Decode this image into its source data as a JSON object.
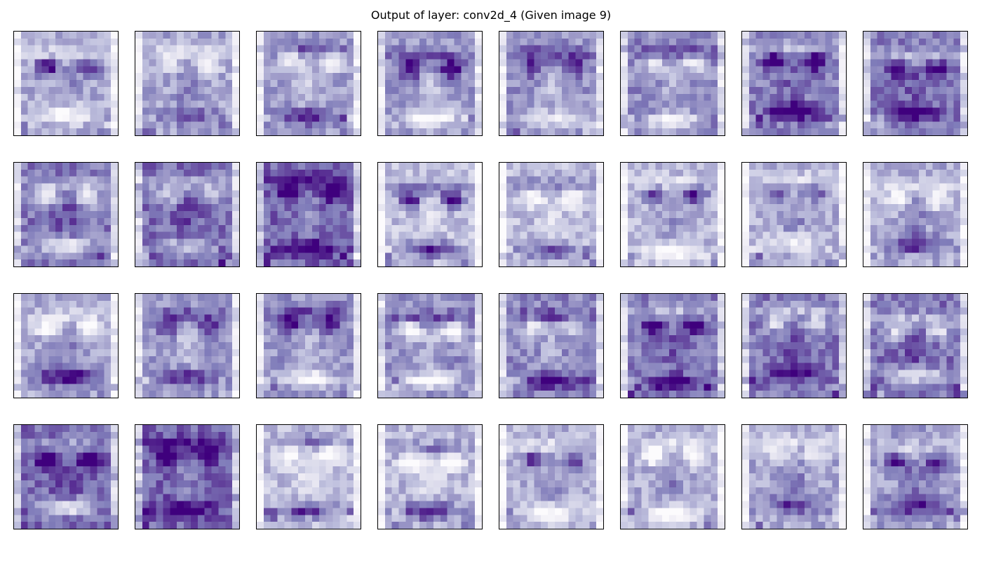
{
  "figure": {
    "title": "Output of layer: conv2d_4 (Given image 9)"
  },
  "chart_data": {
    "type": "heatmap",
    "title": "Output of layer: conv2d_4 (Given image 9)",
    "layer": "conv2d_4",
    "given_image": 9,
    "colormap": "Purples",
    "rows": 4,
    "cols": 8,
    "feature_map_count": 32,
    "feature_map_resolution": 15,
    "axes_ticks": "none",
    "colors": {
      "low": "#fcfbfd",
      "mid": "#9e9ac8",
      "high": "#3f007d"
    }
  }
}
